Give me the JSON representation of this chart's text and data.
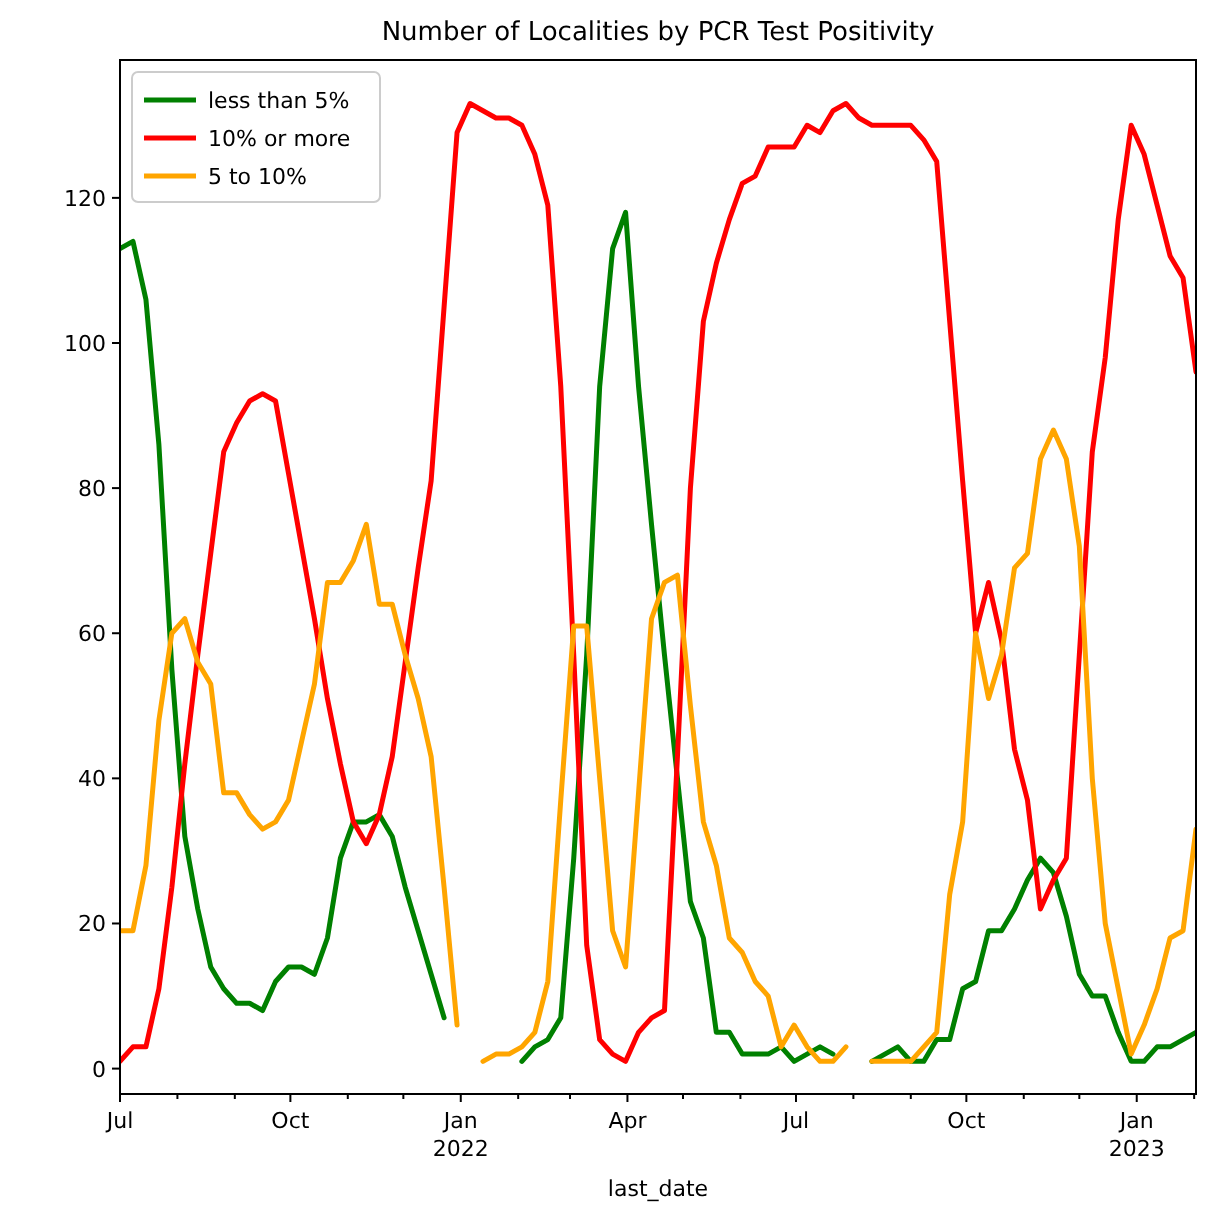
{
  "chart_data": {
    "type": "line",
    "title": "Number of Localities by PCR Test Positivity",
    "xlabel": "last_date",
    "x": [
      "2021-07-01",
      "2021-07-08",
      "2021-07-15",
      "2021-07-22",
      "2021-07-29",
      "2021-08-05",
      "2021-08-12",
      "2021-08-19",
      "2021-08-26",
      "2021-09-02",
      "2021-09-09",
      "2021-09-16",
      "2021-09-23",
      "2021-09-30",
      "2021-10-07",
      "2021-10-14",
      "2021-10-21",
      "2021-10-28",
      "2021-11-04",
      "2021-11-11",
      "2021-11-18",
      "2021-11-25",
      "2021-12-02",
      "2021-12-09",
      "2021-12-16",
      "2021-12-23",
      "2021-12-30",
      "2022-01-06",
      "2022-01-13",
      "2022-01-20",
      "2022-01-27",
      "2022-02-03",
      "2022-02-10",
      "2022-02-17",
      "2022-02-24",
      "2022-03-03",
      "2022-03-10",
      "2022-03-17",
      "2022-03-24",
      "2022-03-31",
      "2022-04-07",
      "2022-04-14",
      "2022-04-21",
      "2022-04-28",
      "2022-05-05",
      "2022-05-12",
      "2022-05-19",
      "2022-05-26",
      "2022-06-02",
      "2022-06-09",
      "2022-06-16",
      "2022-06-23",
      "2022-06-30",
      "2022-07-07",
      "2022-07-14",
      "2022-07-21",
      "2022-07-28",
      "2022-08-04",
      "2022-08-11",
      "2022-08-18",
      "2022-08-25",
      "2022-09-01",
      "2022-09-08",
      "2022-09-15",
      "2022-09-22",
      "2022-09-29",
      "2022-10-06",
      "2022-10-13",
      "2022-10-20",
      "2022-10-27",
      "2022-11-03",
      "2022-11-10",
      "2022-11-17",
      "2022-11-24",
      "2022-12-01",
      "2022-12-08",
      "2022-12-15",
      "2022-12-22",
      "2022-12-29",
      "2023-01-05",
      "2023-01-12",
      "2023-01-19",
      "2023-01-26",
      "2023-02-02"
    ],
    "series": [
      {
        "name": "less than 5%",
        "color": "#008000",
        "values": [
          113,
          114,
          106,
          86,
          55,
          32,
          22,
          14,
          11,
          9,
          9,
          8,
          12,
          14,
          14,
          13,
          18,
          29,
          34,
          34,
          35,
          32,
          25,
          19,
          13,
          7,
          null,
          null,
          null,
          null,
          null,
          1,
          3,
          4,
          7,
          29,
          57,
          94,
          113,
          118,
          94,
          75,
          57,
          40,
          23,
          18,
          5,
          5,
          2,
          2,
          2,
          3,
          1,
          2,
          3,
          2,
          null,
          null,
          1,
          2,
          3,
          1,
          1,
          4,
          4,
          11,
          12,
          19,
          19,
          22,
          26,
          29,
          27,
          21,
          13,
          10,
          10,
          5,
          1,
          1,
          3,
          3,
          4,
          5
        ]
      },
      {
        "name": "10% or more",
        "color": "#ff0000",
        "values": [
          1,
          3,
          3,
          11,
          25,
          42,
          57,
          71,
          85,
          89,
          92,
          93,
          92,
          82,
          72,
          62,
          51,
          42,
          34,
          31,
          35,
          43,
          56,
          69,
          81,
          105,
          129,
          133,
          132,
          131,
          131,
          130,
          126,
          119,
          94,
          57,
          17,
          4,
          2,
          1,
          5,
          7,
          8,
          43,
          80,
          103,
          111,
          117,
          122,
          123,
          127,
          127,
          127,
          130,
          129,
          132,
          133,
          131,
          130,
          130,
          130,
          130,
          128,
          125,
          103,
          81,
          60,
          67,
          59,
          44,
          37,
          22,
          26,
          29,
          57,
          85,
          98,
          117,
          130,
          126,
          119,
          112,
          109,
          96
        ]
      },
      {
        "name": "5 to 10%",
        "color": "#ffa500",
        "values": [
          19,
          19,
          28,
          48,
          60,
          62,
          56,
          53,
          38,
          38,
          35,
          33,
          34,
          37,
          45,
          53,
          67,
          67,
          70,
          75,
          64,
          64,
          57,
          51,
          43,
          25,
          6,
          null,
          1,
          2,
          2,
          3,
          5,
          12,
          37,
          61,
          61,
          40,
          19,
          14,
          38,
          62,
          67,
          68,
          50,
          34,
          28,
          18,
          16,
          12,
          10,
          3,
          6,
          3,
          1,
          1,
          3,
          null,
          1,
          1,
          1,
          1,
          3,
          5,
          24,
          34,
          60,
          51,
          57,
          69,
          71,
          84,
          88,
          84,
          72,
          40,
          20,
          11,
          2,
          6,
          11,
          18,
          19,
          33
        ]
      }
    ],
    "xlim": [
      "2021-07-01",
      "2023-02-02"
    ],
    "xticks": [
      {
        "value": "2021-07-01",
        "label": "Jul"
      },
      {
        "value": "2021-08-01",
        "label": null
      },
      {
        "value": "2021-09-01",
        "label": null
      },
      {
        "value": "2021-10-01",
        "label": "Oct"
      },
      {
        "value": "2021-11-01",
        "label": null
      },
      {
        "value": "2021-12-01",
        "label": null
      },
      {
        "value": "2022-01-01",
        "label": "Jan\n2022"
      },
      {
        "value": "2022-02-01",
        "label": null
      },
      {
        "value": "2022-03-01",
        "label": null
      },
      {
        "value": "2022-04-01",
        "label": "Apr"
      },
      {
        "value": "2022-05-01",
        "label": null
      },
      {
        "value": "2022-06-01",
        "label": null
      },
      {
        "value": "2022-07-01",
        "label": "Jul"
      },
      {
        "value": "2022-08-01",
        "label": null
      },
      {
        "value": "2022-09-01",
        "label": null
      },
      {
        "value": "2022-10-01",
        "label": "Oct"
      },
      {
        "value": "2022-11-01",
        "label": null
      },
      {
        "value": "2022-12-01",
        "label": null
      },
      {
        "value": "2023-01-01",
        "label": "Jan\n2023"
      },
      {
        "value": "2023-02-01",
        "label": null
      }
    ],
    "ylim": [
      -3.5,
      139
    ],
    "yticks": [
      0,
      20,
      40,
      60,
      80,
      100,
      120
    ],
    "legend": "top left",
    "line_style": "solid"
  }
}
